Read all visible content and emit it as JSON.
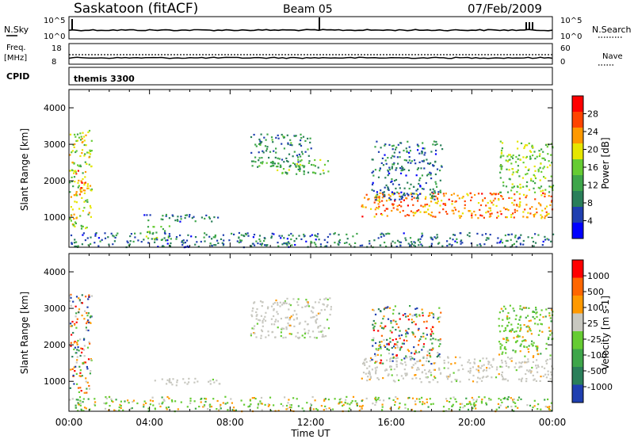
{
  "header": {
    "station": "Saskatoon (fitACF)",
    "beam": "Beam 05",
    "date": "07/Feb/2009"
  },
  "top_panels": {
    "nsky_label": "N.Sky",
    "nsky_ticks": [
      "10^5",
      "10^0"
    ],
    "nsearch_label": "N.Search",
    "nsearch_ticks": [
      "10^5",
      "10^0"
    ],
    "freq_label_1": "Freq.",
    "freq_label_2": "[MHz]",
    "freq_ticks": [
      "18",
      "8"
    ],
    "nave_label": "Nave",
    "nave_ticks": [
      "60",
      "0"
    ],
    "cpid_label": "CPID",
    "cpid_value": "themis 3300"
  },
  "chart_data": [
    {
      "type": "heatmap",
      "panel": "power",
      "ylabel": "Slant Range [km]",
      "xlabel": "Time UT",
      "xlim": [
        0,
        24
      ],
      "ylim": [
        180,
        4500
      ],
      "x_ticks": [
        "00:00",
        "04:00",
        "08:00",
        "12:00",
        "16:00",
        "20:00",
        "00:00"
      ],
      "y_ticks": [
        1000,
        2000,
        3000,
        4000
      ],
      "colorbar": {
        "label": "Power [dB]",
        "range": [
          0,
          32
        ],
        "ticks": [
          "28",
          "24",
          "20",
          "16",
          "12",
          "8",
          "4"
        ],
        "colors": [
          "#0000ff",
          "#1f3fb0",
          "#2a7f5a",
          "#3ea64a",
          "#66cc33",
          "#e6e600",
          "#ff9900",
          "#ff4400",
          "#ff0000"
        ]
      },
      "regions": [
        {
          "t0": 0.0,
          "t1": 1.1,
          "r0": 700,
          "r1": 3400,
          "power": 18
        },
        {
          "t0": 0.3,
          "t1": 0.8,
          "r0": 1500,
          "r1": 2300,
          "power": 26
        },
        {
          "t0": 3.7,
          "t1": 7.5,
          "r0": 900,
          "r1": 1100,
          "power": 8
        },
        {
          "t0": 3.8,
          "t1": 5.0,
          "r0": 400,
          "r1": 800,
          "power": 14
        },
        {
          "t0": 9.0,
          "t1": 12.0,
          "r0": 2400,
          "r1": 3300,
          "power": 10
        },
        {
          "t0": 10.0,
          "t1": 13.0,
          "r0": 2200,
          "r1": 2600,
          "power": 14
        },
        {
          "t0": 14.5,
          "t1": 24.0,
          "r0": 1000,
          "r1": 1700,
          "power": 24
        },
        {
          "t0": 15.0,
          "t1": 18.5,
          "r0": 1500,
          "r1": 3100,
          "power": 8
        },
        {
          "t0": 21.3,
          "t1": 24.0,
          "r0": 1700,
          "r1": 3100,
          "power": 16
        },
        {
          "t0": 0.0,
          "t1": 24.0,
          "r0": 200,
          "r1": 600,
          "power": 8
        }
      ]
    },
    {
      "type": "heatmap",
      "panel": "velocity",
      "ylabel": "Slant Range [km]",
      "xlabel": "Time UT",
      "xlim": [
        0,
        24
      ],
      "ylim": [
        180,
        4500
      ],
      "x_ticks": [
        "00:00",
        "04:00",
        "08:00",
        "12:00",
        "16:00",
        "20:00",
        "00:00"
      ],
      "y_ticks": [
        1000,
        2000,
        3000,
        4000
      ],
      "colorbar": {
        "label": "Velocity [m s-1]",
        "ticks": [
          "1000",
          "500",
          "100",
          "25",
          "-25",
          "-100",
          "-500",
          "-1000"
        ],
        "colors": [
          "#1f3fb0",
          "#2a7f5a",
          "#3ea64a",
          "#66cc33",
          "#c8c8c0",
          "#ff9900",
          "#ff6600",
          "#ff0000"
        ]
      },
      "regions": [
        {
          "t0": 0.0,
          "t1": 1.1,
          "r0": 700,
          "r1": 3400,
          "vclass": "mixed"
        },
        {
          "t0": 3.7,
          "t1": 7.5,
          "r0": 900,
          "r1": 1100,
          "vclass": "ground"
        },
        {
          "t0": 9.0,
          "t1": 13.0,
          "r0": 2200,
          "r1": 3300,
          "vclass": "ground"
        },
        {
          "t0": 14.5,
          "t1": 24.0,
          "r0": 1000,
          "r1": 1700,
          "vclass": "ground"
        },
        {
          "t0": 15.0,
          "t1": 18.5,
          "r0": 1500,
          "r1": 3100,
          "vclass": "mixed"
        },
        {
          "t0": 21.3,
          "t1": 24.0,
          "r0": 1700,
          "r1": 3100,
          "vclass": "green"
        },
        {
          "t0": 0.0,
          "t1": 24.0,
          "r0": 200,
          "r1": 600,
          "vclass": "low"
        }
      ]
    }
  ]
}
